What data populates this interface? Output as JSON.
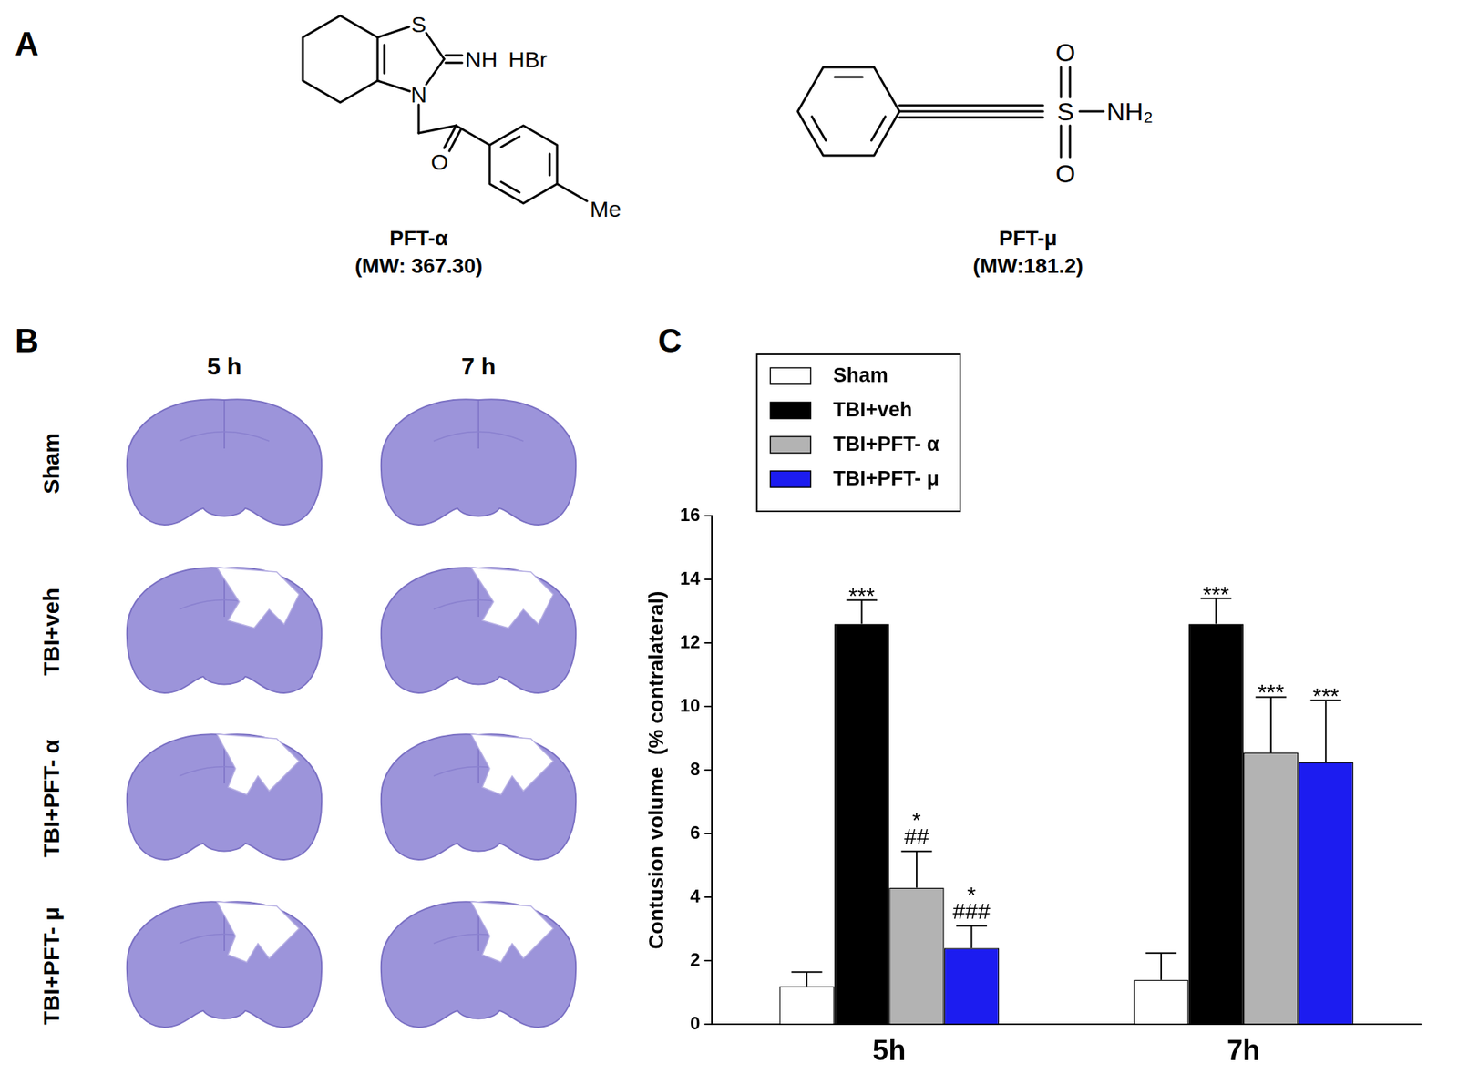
{
  "panel_labels": [
    "A",
    "B",
    "C"
  ],
  "structures": [
    {
      "name": "PFT-α",
      "mw": "(MW: 367.30)",
      "atoms": [
        "S",
        "NH",
        "HBr",
        "N",
        "O",
        "Me"
      ]
    },
    {
      "name": "PFT-μ",
      "mw": "(MW:181.2)",
      "atoms": [
        "O",
        "S",
        "NH₂",
        "O"
      ]
    }
  ],
  "histology": {
    "columns": [
      "5 h",
      "7 h"
    ],
    "rows": [
      "Sham",
      "TBI+veh",
      "TBI+PFT- α",
      "TBI+PFT- μ"
    ]
  },
  "chart_data": {
    "type": "bar",
    "y_label": "Contusion volume  (% contralateral)",
    "categories": [
      "5h",
      "7h"
    ],
    "series": [
      {
        "name": "Sham",
        "color": "#ffffff",
        "values": [
          1.2,
          1.4
        ],
        "errors": [
          0.45,
          0.85
        ]
      },
      {
        "name": "TBI+veh",
        "color": "#000000",
        "values": [
          12.6,
          12.6
        ],
        "errors": [
          0.75,
          0.8
        ],
        "annotations": [
          [
            "***"
          ],
          [
            "***"
          ]
        ]
      },
      {
        "name": "TBI+PFT- α",
        "color": "#b3b3b3",
        "values": [
          4.3,
          8.55
        ],
        "errors": [
          1.15,
          1.75
        ],
        "annotations": [
          [
            "*",
            "##"
          ],
          [
            "***"
          ]
        ]
      },
      {
        "name": "TBI+PFT- μ",
        "color": "#1c1cf0",
        "values": [
          2.4,
          8.25
        ],
        "errors": [
          0.7,
          1.95
        ],
        "annotations": [
          [
            "*",
            "###"
          ],
          [
            "***"
          ]
        ]
      }
    ],
    "ylim": [
      0,
      16
    ],
    "yticks": [
      0,
      2,
      4,
      6,
      8,
      10,
      12,
      14,
      16
    ],
    "grid": false,
    "legend": "upper left"
  }
}
